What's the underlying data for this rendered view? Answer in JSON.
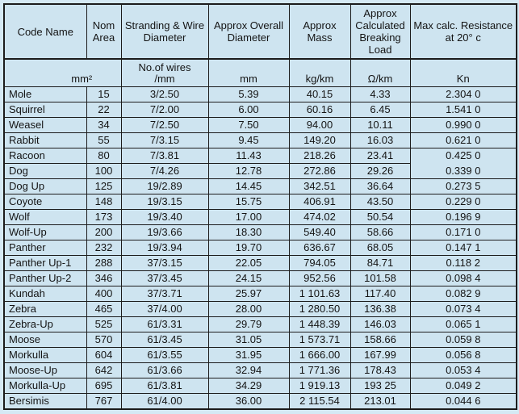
{
  "colors": {
    "page_background": "#d5e9f4",
    "cell_background": "#cee4f0",
    "border": "#1c1c1c",
    "text": "#141414"
  },
  "table": {
    "columns": [
      {
        "title": "Code Name"
      },
      {
        "title": "Nom Area"
      },
      {
        "title": "Stranding & Wire Diameter"
      },
      {
        "title": "Approx Overall Diameter"
      },
      {
        "title": "Approx Mass"
      },
      {
        "title": "Approx Calculated Breaking Load"
      },
      {
        "title": "Max calc. Resistance at 20° c"
      }
    ],
    "units": {
      "area": "mm²",
      "stranding_line1": "No.of wires",
      "stranding_line2": "/mm",
      "overall_diameter": "mm",
      "mass": "kg/km",
      "breaking_load_col_unit": "Ω/km",
      "resistance_col_unit": "Kn"
    },
    "rows": [
      [
        "Mole",
        "15",
        "3/2.50",
        "5.39",
        "40.15",
        "4.33",
        "2.304 0"
      ],
      [
        "Squirrel",
        "22",
        "7/2.00",
        "6.00",
        "60.16",
        "6.45",
        "1.541 0"
      ],
      [
        "Weasel",
        "34",
        "7/2.50",
        "7.50",
        "94.00",
        "10.11",
        "0.990 0"
      ],
      [
        "Rabbit",
        "55",
        "7/3.15",
        "9.45",
        "149.20",
        "16.03",
        "0.621 0"
      ],
      [
        "Racoon",
        "80",
        "7/3.81",
        "11.43",
        "218.26",
        "23.41",
        "0.425 0"
      ],
      [
        "Dog",
        "100",
        "7/4.26",
        "12.78",
        "272.86",
        "29.26",
        "0.339 0"
      ],
      [
        "Dog Up",
        "125",
        "19/2.89",
        "14.45",
        "342.51",
        "36.64",
        "0.273 5"
      ],
      [
        "Coyote",
        "148",
        "19/3.15",
        "15.75",
        "406.91",
        "43.50",
        "0.229 0"
      ],
      [
        "Wolf",
        "173",
        "19/3.40",
        "17.00",
        "474.02",
        "50.54",
        "0.196 9"
      ],
      [
        "Wolf-Up",
        "200",
        "19/3.66",
        "18.30",
        "549.40",
        "58.66",
        "0.171 0"
      ],
      [
        "Panther",
        "232",
        "19/3.94",
        "19.70",
        "636.67",
        "68.05",
        "0.147 1"
      ],
      [
        "Panther Up-1",
        "288",
        "37/3.15",
        "22.05",
        "794.05",
        "84.71",
        "0.118 2"
      ],
      [
        "Panther Up-2",
        "346",
        "37/3.45",
        "24.15",
        "952.56",
        "101.58",
        "0.098 4"
      ],
      [
        "Kundah",
        "400",
        "37/3.71",
        "25.97",
        "1 101.63",
        "117.40",
        "0.082 9"
      ],
      [
        "Zebra",
        "465",
        "37/4.00",
        "28.00",
        "1 280.50",
        "136.38",
        "0.073 4"
      ],
      [
        "Zebra-Up",
        "525",
        "61/3.31",
        "29.79",
        "1 448.39",
        "146.03",
        "0.065 1"
      ],
      [
        "Moose",
        "570",
        "61/3.45",
        "31.05",
        "1 573.71",
        "158.66",
        "0.059 8"
      ],
      [
        "Morkulla",
        "604",
        "61/3.55",
        "31.95",
        "1 666.00",
        "167.99",
        "0.056 8"
      ],
      [
        "Moose-Up",
        "642",
        "61/3.66",
        "32.94",
        "1 771.36",
        "178.43",
        "0.053 4"
      ],
      [
        "Morkulla-Up",
        "695",
        "61/3.81",
        "34.29",
        "1 919.13",
        "193 25",
        "0.049 2"
      ],
      [
        "Bersimis",
        "767",
        "61/4.00",
        "36.00",
        "2 115.54",
        "213.01",
        "0.044 6"
      ]
    ]
  }
}
